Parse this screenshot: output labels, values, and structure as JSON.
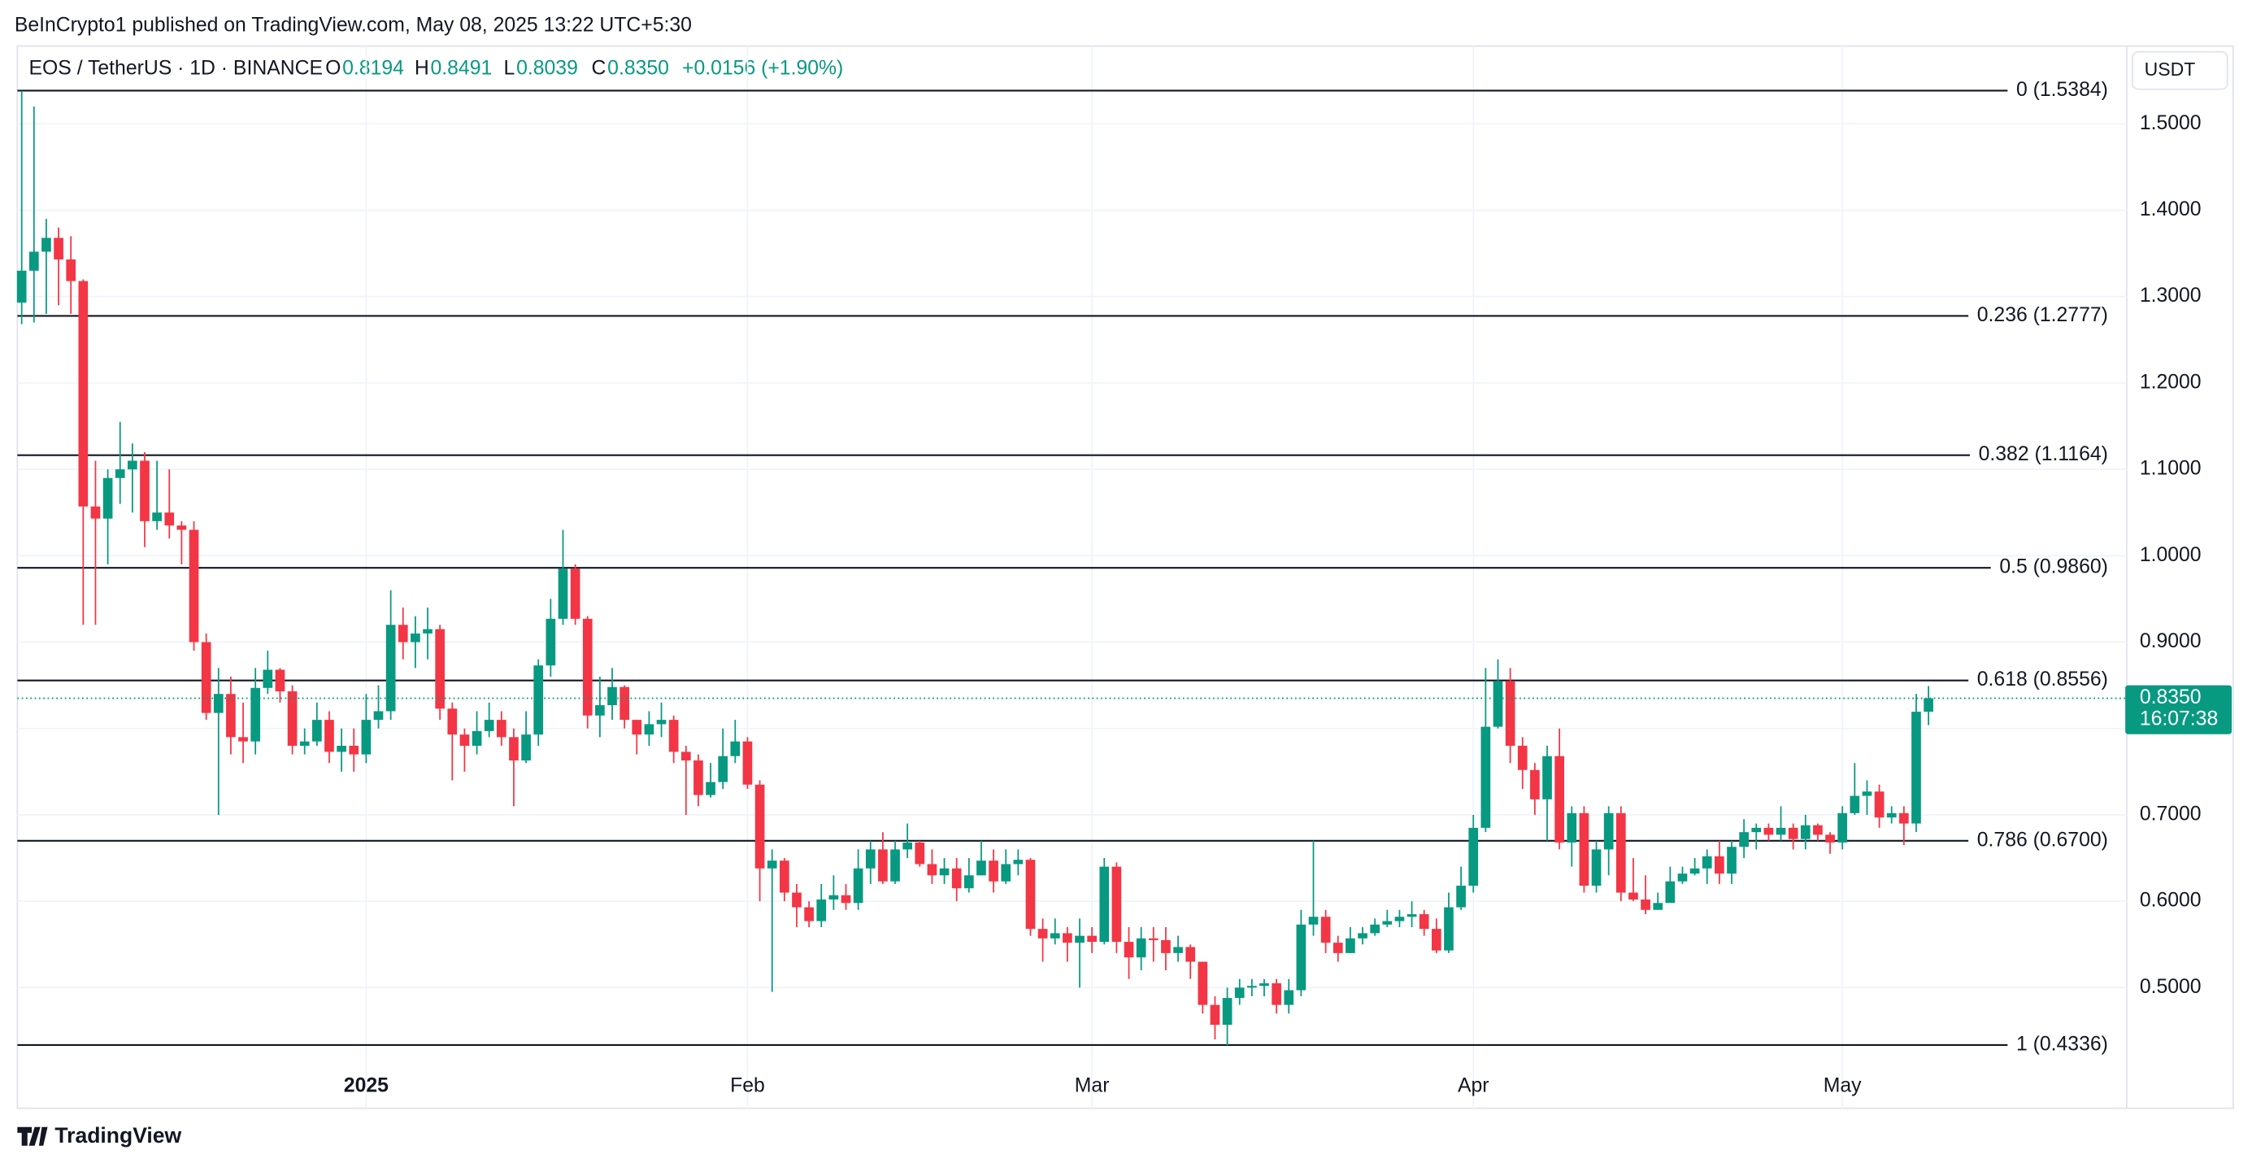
{
  "header": {
    "publisher": "BeInCrypto1 published on TradingView.com, May 08, 2025 13:22 UTC+5:30",
    "symbol": "EOS / TetherUS · 1D · BINANCE",
    "ohlc": [
      {
        "key": "O",
        "text": "0.8194"
      },
      {
        "key": "H",
        "text": "0.8491"
      },
      {
        "key": "L",
        "text": "0.8039"
      },
      {
        "key": "C",
        "text": "0.8350"
      }
    ],
    "change": "+0.0156 (+1.90%)",
    "currency": "USDT",
    "brand": "TradingView"
  },
  "chart_data": {
    "type": "candlestick",
    "up_color": "#089981",
    "down_color": "#f23645",
    "grid": true,
    "categories": [
      null,
      null,
      null,
      null,
      null,
      null,
      null,
      null,
      null,
      null,
      null,
      null,
      null,
      null,
      null,
      null,
      null,
      null,
      null,
      null,
      null,
      null,
      null,
      null,
      null,
      null,
      null,
      null,
      "2025",
      null,
      null,
      null,
      null,
      null,
      null,
      null,
      null,
      null,
      null,
      null,
      null,
      null,
      null,
      null,
      null,
      null,
      null,
      null,
      null,
      null,
      null,
      null,
      null,
      null,
      null,
      null,
      null,
      null,
      null,
      "Feb",
      null,
      null,
      null,
      null,
      null,
      null,
      null,
      null,
      null,
      null,
      null,
      null,
      null,
      null,
      null,
      null,
      null,
      null,
      null,
      null,
      null,
      null,
      null,
      null,
      null,
      null,
      null,
      "Mar",
      null,
      null,
      null,
      null,
      null,
      null,
      null,
      null,
      null,
      null,
      null,
      null,
      null,
      null,
      null,
      null,
      null,
      null,
      null,
      null,
      null,
      null,
      null,
      null,
      null,
      null,
      null,
      null,
      null,
      null,
      "Apr",
      null,
      null,
      null,
      null,
      null,
      null,
      null,
      null,
      null,
      null,
      null,
      null,
      null,
      null,
      null,
      null,
      null,
      null,
      null,
      null,
      null,
      null,
      null,
      null,
      null,
      null,
      null,
      null,
      null,
      "May",
      null,
      null,
      null,
      null,
      null,
      null,
      null
    ],
    "open": [
      1.293,
      1.33,
      1.352,
      1.368,
      1.343,
      1.318,
      1.057,
      1.043,
      1.09,
      1.1,
      1.11,
      1.04,
      1.05,
      1.035,
      1.03,
      0.9,
      0.818,
      0.84,
      0.79,
      0.785,
      0.847,
      0.868,
      0.843,
      0.78,
      0.785,
      0.81,
      0.773,
      0.78,
      0.77,
      0.81,
      0.82,
      0.92,
      0.9,
      0.91,
      0.915,
      0.823,
      0.793,
      0.78,
      0.797,
      0.81,
      0.79,
      0.763,
      0.793,
      0.873,
      0.927,
      0.985,
      0.927,
      0.815,
      0.827,
      0.848,
      0.81,
      0.793,
      0.805,
      0.81,
      0.773,
      0.763,
      0.723,
      0.738,
      0.768,
      0.785,
      0.735,
      0.638,
      0.647,
      0.61,
      0.593,
      0.577,
      0.602,
      0.607,
      0.598,
      0.638,
      0.66,
      0.623,
      0.66,
      0.668,
      0.643,
      0.63,
      0.638,
      0.615,
      0.63,
      0.647,
      0.623,
      0.643,
      0.648,
      0.568,
      0.557,
      0.563,
      0.552,
      0.56,
      0.553,
      0.64,
      0.553,
      0.535,
      0.557,
      0.555,
      0.54,
      0.547,
      0.53,
      0.48,
      0.457,
      0.488,
      0.5,
      0.502,
      0.505,
      0.48,
      0.497,
      0.573,
      0.582,
      0.552,
      0.54,
      0.557,
      0.563,
      0.573,
      0.577,
      0.582,
      0.585,
      0.568,
      0.543,
      0.593,
      0.618,
      0.685,
      0.802,
      0.855,
      0.78,
      0.752,
      0.718,
      0.768,
      0.668,
      0.702,
      0.618,
      0.66,
      0.702,
      0.61,
      0.602,
      0.59,
      0.598,
      0.623,
      0.632,
      0.638,
      0.652,
      0.632,
      0.663,
      0.68,
      0.685,
      0.677,
      0.685,
      0.672,
      0.688,
      0.677,
      0.668,
      0.702,
      0.722,
      0.727,
      0.697,
      0.702,
      0.69,
      0.8194
    ],
    "high": [
      1.538,
      1.52,
      1.39,
      1.38,
      1.37,
      1.32,
      1.11,
      1.1,
      1.155,
      1.13,
      1.12,
      1.11,
      1.1,
      1.04,
      1.04,
      0.91,
      0.87,
      0.86,
      0.83,
      0.87,
      0.89,
      0.87,
      0.85,
      0.8,
      0.83,
      0.82,
      0.8,
      0.8,
      0.84,
      0.85,
      0.96,
      0.94,
      0.93,
      0.94,
      0.92,
      0.83,
      0.8,
      0.82,
      0.83,
      0.82,
      0.8,
      0.82,
      0.88,
      0.95,
      1.03,
      0.99,
      0.93,
      0.86,
      0.87,
      0.85,
      0.81,
      0.82,
      0.83,
      0.815,
      0.78,
      0.77,
      0.76,
      0.8,
      0.81,
      0.79,
      0.74,
      0.66,
      0.65,
      0.62,
      0.6,
      0.62,
      0.63,
      0.62,
      0.66,
      0.67,
      0.68,
      0.67,
      0.69,
      0.67,
      0.66,
      0.65,
      0.65,
      0.65,
      0.67,
      0.66,
      0.66,
      0.66,
      0.65,
      0.58,
      0.58,
      0.57,
      0.58,
      0.57,
      0.65,
      0.645,
      0.57,
      0.57,
      0.57,
      0.57,
      0.56,
      0.55,
      0.53,
      0.49,
      0.5,
      0.51,
      0.51,
      0.51,
      0.51,
      0.51,
      0.59,
      0.67,
      0.59,
      0.56,
      0.57,
      0.57,
      0.58,
      0.59,
      0.59,
      0.6,
      0.59,
      0.58,
      0.61,
      0.64,
      0.7,
      0.87,
      0.88,
      0.87,
      0.79,
      0.76,
      0.78,
      0.8,
      0.71,
      0.71,
      0.67,
      0.71,
      0.71,
      0.65,
      0.63,
      0.61,
      0.64,
      0.64,
      0.65,
      0.66,
      0.67,
      0.67,
      0.695,
      0.69,
      0.69,
      0.71,
      0.69,
      0.7,
      0.69,
      0.68,
      0.71,
      0.76,
      0.74,
      0.735,
      0.71,
      0.71,
      0.84,
      0.8491
    ],
    "low": [
      1.268,
      1.27,
      1.28,
      1.29,
      1.28,
      0.92,
      0.92,
      0.99,
      1.06,
      1.05,
      1.01,
      1.03,
      1.02,
      0.99,
      0.89,
      0.81,
      0.7,
      0.77,
      0.76,
      0.77,
      0.84,
      0.83,
      0.77,
      0.77,
      0.78,
      0.76,
      0.75,
      0.75,
      0.76,
      0.8,
      0.81,
      0.88,
      0.87,
      0.88,
      0.81,
      0.74,
      0.75,
      0.77,
      0.79,
      0.78,
      0.71,
      0.76,
      0.78,
      0.86,
      0.92,
      0.92,
      0.8,
      0.79,
      0.81,
      0.8,
      0.77,
      0.78,
      0.79,
      0.76,
      0.7,
      0.71,
      0.72,
      0.73,
      0.76,
      0.73,
      0.6,
      0.495,
      0.6,
      0.57,
      0.57,
      0.57,
      0.59,
      0.59,
      0.59,
      0.62,
      0.62,
      0.62,
      0.65,
      0.64,
      0.62,
      0.62,
      0.6,
      0.61,
      0.63,
      0.61,
      0.62,
      0.63,
      0.56,
      0.53,
      0.55,
      0.53,
      0.5,
      0.54,
      0.55,
      0.54,
      0.51,
      0.52,
      0.53,
      0.52,
      0.53,
      0.51,
      0.47,
      0.44,
      0.433,
      0.48,
      0.49,
      0.49,
      0.47,
      0.47,
      0.49,
      0.56,
      0.54,
      0.53,
      0.54,
      0.55,
      0.56,
      0.57,
      0.57,
      0.57,
      0.56,
      0.54,
      0.54,
      0.59,
      0.61,
      0.68,
      0.8,
      0.76,
      0.73,
      0.7,
      0.67,
      0.66,
      0.64,
      0.61,
      0.61,
      0.63,
      0.6,
      0.6,
      0.585,
      0.59,
      0.6,
      0.62,
      0.63,
      0.62,
      0.62,
      0.62,
      0.65,
      0.66,
      0.67,
      0.67,
      0.66,
      0.66,
      0.67,
      0.655,
      0.66,
      0.7,
      0.7,
      0.685,
      0.69,
      0.665,
      0.68,
      0.8039
    ],
    "close": [
      1.33,
      1.352,
      1.368,
      1.343,
      1.318,
      1.057,
      1.043,
      1.09,
      1.1,
      1.11,
      1.04,
      1.05,
      1.035,
      1.03,
      0.9,
      0.818,
      0.84,
      0.79,
      0.785,
      0.847,
      0.868,
      0.843,
      0.78,
      0.785,
      0.81,
      0.773,
      0.78,
      0.77,
      0.81,
      0.82,
      0.92,
      0.9,
      0.91,
      0.915,
      0.823,
      0.793,
      0.78,
      0.797,
      0.81,
      0.79,
      0.763,
      0.793,
      0.873,
      0.927,
      0.985,
      0.927,
      0.815,
      0.827,
      0.848,
      0.81,
      0.793,
      0.805,
      0.81,
      0.773,
      0.763,
      0.723,
      0.738,
      0.768,
      0.785,
      0.735,
      0.638,
      0.647,
      0.61,
      0.593,
      0.577,
      0.602,
      0.607,
      0.598,
      0.638,
      0.66,
      0.623,
      0.66,
      0.668,
      0.643,
      0.63,
      0.638,
      0.615,
      0.63,
      0.647,
      0.623,
      0.643,
      0.648,
      0.568,
      0.557,
      0.563,
      0.552,
      0.56,
      0.553,
      0.64,
      0.553,
      0.535,
      0.557,
      0.555,
      0.54,
      0.547,
      0.53,
      0.48,
      0.457,
      0.488,
      0.5,
      0.502,
      0.505,
      0.48,
      0.497,
      0.573,
      0.582,
      0.552,
      0.54,
      0.557,
      0.563,
      0.573,
      0.577,
      0.582,
      0.585,
      0.568,
      0.543,
      0.593,
      0.618,
      0.685,
      0.802,
      0.855,
      0.78,
      0.752,
      0.718,
      0.768,
      0.668,
      0.702,
      0.618,
      0.66,
      0.702,
      0.61,
      0.602,
      0.59,
      0.598,
      0.623,
      0.632,
      0.638,
      0.652,
      0.632,
      0.663,
      0.68,
      0.685,
      0.677,
      0.685,
      0.672,
      0.688,
      0.677,
      0.668,
      0.702,
      0.722,
      0.727,
      0.697,
      0.702,
      0.69,
      0.8194,
      0.835
    ],
    "ylim": [
      0.4336,
      1.5384
    ],
    "yticks": [
      {
        "value": 0.5,
        "label": "0.5000"
      },
      {
        "value": 0.6,
        "label": "0.6000"
      },
      {
        "value": 0.7,
        "label": "0.7000"
      },
      {
        "value": 0.8,
        "label": "0.8000"
      },
      {
        "value": 0.9,
        "label": "0.9000"
      },
      {
        "value": 1.0,
        "label": "1.0000"
      },
      {
        "value": 1.1,
        "label": "1.1000"
      },
      {
        "value": 1.2,
        "label": "1.2000"
      },
      {
        "value": 1.3,
        "label": "1.3000"
      },
      {
        "value": 1.4,
        "label": "1.4000"
      },
      {
        "value": 1.5,
        "label": "1.5000"
      }
    ],
    "fib_levels": [
      {
        "value": 1.5384,
        "label": "0 (1.5384)"
      },
      {
        "value": 1.2777,
        "label": "0.236 (1.2777)"
      },
      {
        "value": 1.1164,
        "label": "0.382 (1.1164)"
      },
      {
        "value": 0.986,
        "label": "0.5 (0.9860)"
      },
      {
        "value": 0.8556,
        "label": "0.618 (0.8556)"
      },
      {
        "value": 0.67,
        "label": "0.786 (0.6700)"
      },
      {
        "value": 0.4336,
        "label": "1 (0.4336)"
      }
    ],
    "last_price": {
      "value": 0.835,
      "label": "0.8350"
    },
    "countdown": "16:07:38"
  }
}
